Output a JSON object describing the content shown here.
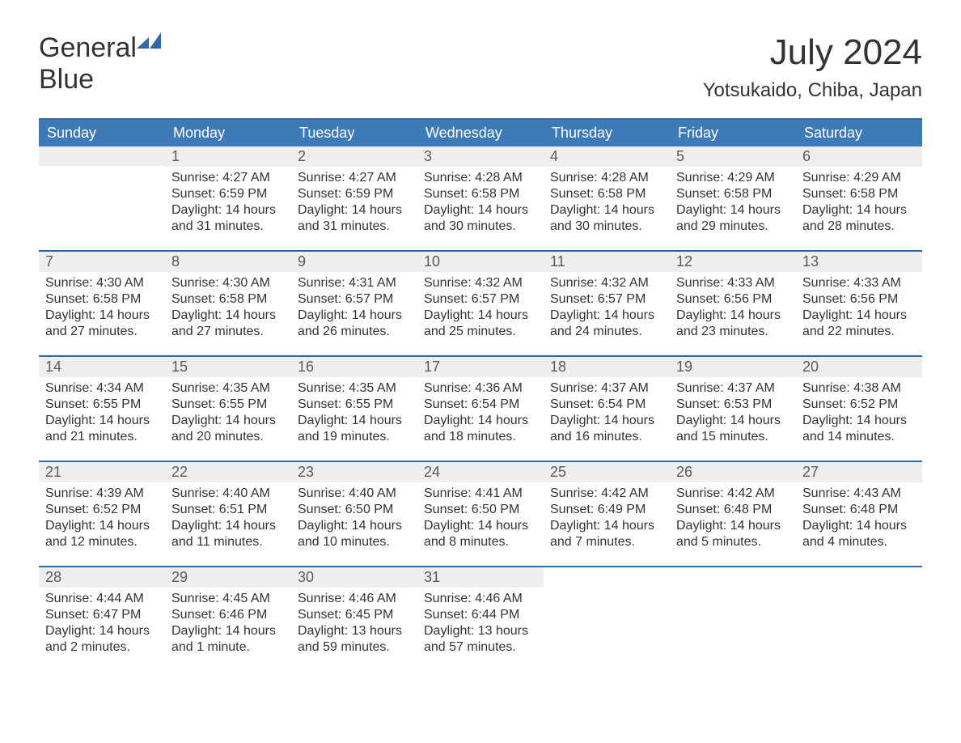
{
  "brand": {
    "word1": "General",
    "word2": "Blue",
    "flag_color": "#2f6aa8",
    "word1_color": "#333333",
    "word2_color": "#2f6aa8"
  },
  "header": {
    "month_title": "July 2024",
    "location": "Yotsukaido, Chiba, Japan"
  },
  "colors": {
    "header_bg": "#3d7ab8",
    "header_text": "#ffffff",
    "week_divider": "#2f6aa8",
    "daynum_bg": "#eeeeee",
    "daynum_text": "#5a5a5a",
    "body_text": "#333333",
    "page_bg": "#ffffff"
  },
  "typography": {
    "month_title_fontsize": 44,
    "location_fontsize": 24,
    "dow_fontsize": 18,
    "daynum_fontsize": 18,
    "body_fontsize": 16
  },
  "days_of_week": [
    "Sunday",
    "Monday",
    "Tuesday",
    "Wednesday",
    "Thursday",
    "Friday",
    "Saturday"
  ],
  "weeks": [
    [
      {
        "day": "",
        "sunrise": "",
        "sunset": "",
        "daylight1": "",
        "daylight2": "",
        "empty": true
      },
      {
        "day": "1",
        "sunrise": "Sunrise: 4:27 AM",
        "sunset": "Sunset: 6:59 PM",
        "daylight1": "Daylight: 14 hours",
        "daylight2": "and 31 minutes."
      },
      {
        "day": "2",
        "sunrise": "Sunrise: 4:27 AM",
        "sunset": "Sunset: 6:59 PM",
        "daylight1": "Daylight: 14 hours",
        "daylight2": "and 31 minutes."
      },
      {
        "day": "3",
        "sunrise": "Sunrise: 4:28 AM",
        "sunset": "Sunset: 6:58 PM",
        "daylight1": "Daylight: 14 hours",
        "daylight2": "and 30 minutes."
      },
      {
        "day": "4",
        "sunrise": "Sunrise: 4:28 AM",
        "sunset": "Sunset: 6:58 PM",
        "daylight1": "Daylight: 14 hours",
        "daylight2": "and 30 minutes."
      },
      {
        "day": "5",
        "sunrise": "Sunrise: 4:29 AM",
        "sunset": "Sunset: 6:58 PM",
        "daylight1": "Daylight: 14 hours",
        "daylight2": "and 29 minutes."
      },
      {
        "day": "6",
        "sunrise": "Sunrise: 4:29 AM",
        "sunset": "Sunset: 6:58 PM",
        "daylight1": "Daylight: 14 hours",
        "daylight2": "and 28 minutes."
      }
    ],
    [
      {
        "day": "7",
        "sunrise": "Sunrise: 4:30 AM",
        "sunset": "Sunset: 6:58 PM",
        "daylight1": "Daylight: 14 hours",
        "daylight2": "and 27 minutes."
      },
      {
        "day": "8",
        "sunrise": "Sunrise: 4:30 AM",
        "sunset": "Sunset: 6:58 PM",
        "daylight1": "Daylight: 14 hours",
        "daylight2": "and 27 minutes."
      },
      {
        "day": "9",
        "sunrise": "Sunrise: 4:31 AM",
        "sunset": "Sunset: 6:57 PM",
        "daylight1": "Daylight: 14 hours",
        "daylight2": "and 26 minutes."
      },
      {
        "day": "10",
        "sunrise": "Sunrise: 4:32 AM",
        "sunset": "Sunset: 6:57 PM",
        "daylight1": "Daylight: 14 hours",
        "daylight2": "and 25 minutes."
      },
      {
        "day": "11",
        "sunrise": "Sunrise: 4:32 AM",
        "sunset": "Sunset: 6:57 PM",
        "daylight1": "Daylight: 14 hours",
        "daylight2": "and 24 minutes."
      },
      {
        "day": "12",
        "sunrise": "Sunrise: 4:33 AM",
        "sunset": "Sunset: 6:56 PM",
        "daylight1": "Daylight: 14 hours",
        "daylight2": "and 23 minutes."
      },
      {
        "day": "13",
        "sunrise": "Sunrise: 4:33 AM",
        "sunset": "Sunset: 6:56 PM",
        "daylight1": "Daylight: 14 hours",
        "daylight2": "and 22 minutes."
      }
    ],
    [
      {
        "day": "14",
        "sunrise": "Sunrise: 4:34 AM",
        "sunset": "Sunset: 6:55 PM",
        "daylight1": "Daylight: 14 hours",
        "daylight2": "and 21 minutes."
      },
      {
        "day": "15",
        "sunrise": "Sunrise: 4:35 AM",
        "sunset": "Sunset: 6:55 PM",
        "daylight1": "Daylight: 14 hours",
        "daylight2": "and 20 minutes."
      },
      {
        "day": "16",
        "sunrise": "Sunrise: 4:35 AM",
        "sunset": "Sunset: 6:55 PM",
        "daylight1": "Daylight: 14 hours",
        "daylight2": "and 19 minutes."
      },
      {
        "day": "17",
        "sunrise": "Sunrise: 4:36 AM",
        "sunset": "Sunset: 6:54 PM",
        "daylight1": "Daylight: 14 hours",
        "daylight2": "and 18 minutes."
      },
      {
        "day": "18",
        "sunrise": "Sunrise: 4:37 AM",
        "sunset": "Sunset: 6:54 PM",
        "daylight1": "Daylight: 14 hours",
        "daylight2": "and 16 minutes."
      },
      {
        "day": "19",
        "sunrise": "Sunrise: 4:37 AM",
        "sunset": "Sunset: 6:53 PM",
        "daylight1": "Daylight: 14 hours",
        "daylight2": "and 15 minutes."
      },
      {
        "day": "20",
        "sunrise": "Sunrise: 4:38 AM",
        "sunset": "Sunset: 6:52 PM",
        "daylight1": "Daylight: 14 hours",
        "daylight2": "and 14 minutes."
      }
    ],
    [
      {
        "day": "21",
        "sunrise": "Sunrise: 4:39 AM",
        "sunset": "Sunset: 6:52 PM",
        "daylight1": "Daylight: 14 hours",
        "daylight2": "and 12 minutes."
      },
      {
        "day": "22",
        "sunrise": "Sunrise: 4:40 AM",
        "sunset": "Sunset: 6:51 PM",
        "daylight1": "Daylight: 14 hours",
        "daylight2": "and 11 minutes."
      },
      {
        "day": "23",
        "sunrise": "Sunrise: 4:40 AM",
        "sunset": "Sunset: 6:50 PM",
        "daylight1": "Daylight: 14 hours",
        "daylight2": "and 10 minutes."
      },
      {
        "day": "24",
        "sunrise": "Sunrise: 4:41 AM",
        "sunset": "Sunset: 6:50 PM",
        "daylight1": "Daylight: 14 hours",
        "daylight2": "and 8 minutes."
      },
      {
        "day": "25",
        "sunrise": "Sunrise: 4:42 AM",
        "sunset": "Sunset: 6:49 PM",
        "daylight1": "Daylight: 14 hours",
        "daylight2": "and 7 minutes."
      },
      {
        "day": "26",
        "sunrise": "Sunrise: 4:42 AM",
        "sunset": "Sunset: 6:48 PM",
        "daylight1": "Daylight: 14 hours",
        "daylight2": "and 5 minutes."
      },
      {
        "day": "27",
        "sunrise": "Sunrise: 4:43 AM",
        "sunset": "Sunset: 6:48 PM",
        "daylight1": "Daylight: 14 hours",
        "daylight2": "and 4 minutes."
      }
    ],
    [
      {
        "day": "28",
        "sunrise": "Sunrise: 4:44 AM",
        "sunset": "Sunset: 6:47 PM",
        "daylight1": "Daylight: 14 hours",
        "daylight2": "and 2 minutes."
      },
      {
        "day": "29",
        "sunrise": "Sunrise: 4:45 AM",
        "sunset": "Sunset: 6:46 PM",
        "daylight1": "Daylight: 14 hours",
        "daylight2": "and 1 minute."
      },
      {
        "day": "30",
        "sunrise": "Sunrise: 4:46 AM",
        "sunset": "Sunset: 6:45 PM",
        "daylight1": "Daylight: 13 hours",
        "daylight2": "and 59 minutes."
      },
      {
        "day": "31",
        "sunrise": "Sunrise: 4:46 AM",
        "sunset": "Sunset: 6:44 PM",
        "daylight1": "Daylight: 13 hours",
        "daylight2": "and 57 minutes."
      },
      {
        "day": "",
        "sunrise": "",
        "sunset": "",
        "daylight1": "",
        "daylight2": "",
        "empty": true,
        "blank": true
      },
      {
        "day": "",
        "sunrise": "",
        "sunset": "",
        "daylight1": "",
        "daylight2": "",
        "empty": true,
        "blank": true
      },
      {
        "day": "",
        "sunrise": "",
        "sunset": "",
        "daylight1": "",
        "daylight2": "",
        "empty": true,
        "blank": true
      }
    ]
  ]
}
